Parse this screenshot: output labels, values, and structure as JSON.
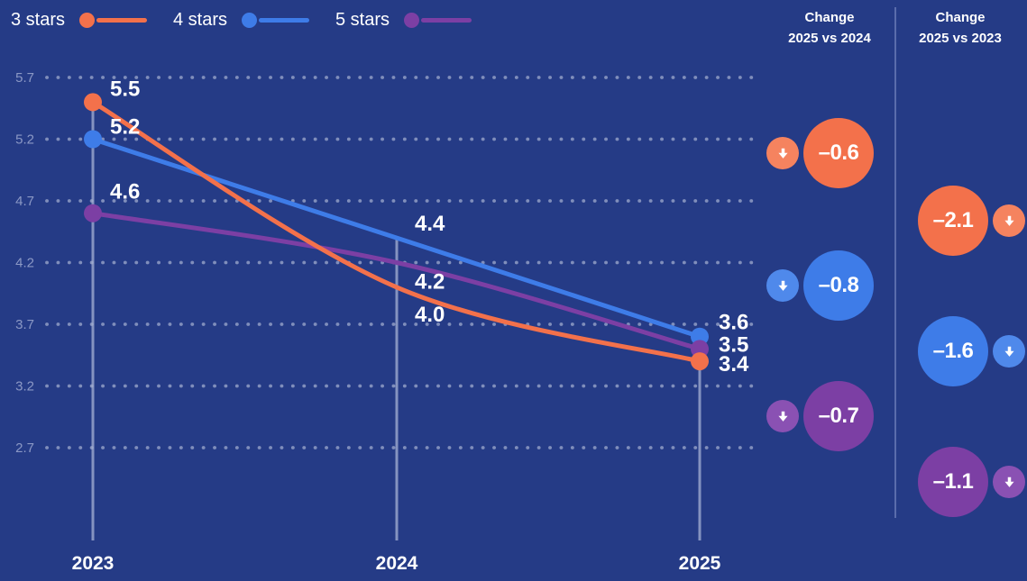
{
  "colors": {
    "background": "#253B86",
    "orange": "#F3714B",
    "blue": "#3E7CE8",
    "purple": "#7C3FA4",
    "grid_dot": "#97A3C9",
    "axis_line": "#A6B1D4",
    "tick_label": "#8B98C5",
    "label_text": "#FFFFFF",
    "divider": "#5A6CAC"
  },
  "legend": {
    "items": [
      {
        "label": "3 stars",
        "color": "#F3714B"
      },
      {
        "label": "4 stars",
        "color": "#3E7CE8"
      },
      {
        "label": "5 stars",
        "color": "#7C3FA4"
      }
    ]
  },
  "chart_data": {
    "type": "line",
    "x": [
      "2023",
      "2024",
      "2025"
    ],
    "series": [
      {
        "name": "3 stars",
        "color": "#F3714B",
        "values": [
          5.5,
          4.0,
          3.4
        ]
      },
      {
        "name": "4 stars",
        "color": "#3E7CE8",
        "values": [
          5.2,
          4.4,
          3.6
        ]
      },
      {
        "name": "5 stars",
        "color": "#7C3FA4",
        "values": [
          4.6,
          4.2,
          3.5
        ]
      }
    ],
    "yticks": [
      "5.7",
      "5.2",
      "4.7",
      "4.2",
      "3.7",
      "3.2",
      "2.7"
    ],
    "ylim": [
      2.7,
      5.7
    ],
    "grid": "horizontal-dotted",
    "legend_position": "top-left",
    "point_labels_shown": true
  },
  "change_columns": [
    {
      "title": "Change",
      "subtitle": "2025 vs 2024",
      "rows": [
        {
          "series": "3 stars",
          "value": "–0.6",
          "direction": "down",
          "color": "#F3714B",
          "arrow_color": "#F5835F"
        },
        {
          "series": "4 stars",
          "value": "–0.8",
          "direction": "down",
          "color": "#3E7CE8",
          "arrow_color": "#4F89EB"
        },
        {
          "series": "5 stars",
          "value": "–0.7",
          "direction": "down",
          "color": "#7C3FA4",
          "arrow_color": "#8A51B3"
        }
      ]
    },
    {
      "title": "Change",
      "subtitle": "2025 vs 2023",
      "rows": [
        {
          "series": "3 stars",
          "value": "–2.1",
          "direction": "down",
          "color": "#F3714B",
          "arrow_color": "#F5835F"
        },
        {
          "series": "4 stars",
          "value": "–1.6",
          "direction": "down",
          "color": "#3E7CE8",
          "arrow_color": "#4F89EB"
        },
        {
          "series": "5 stars",
          "value": "–1.1",
          "direction": "down",
          "color": "#7C3FA4",
          "arrow_color": "#8A51B3"
        }
      ]
    }
  ]
}
